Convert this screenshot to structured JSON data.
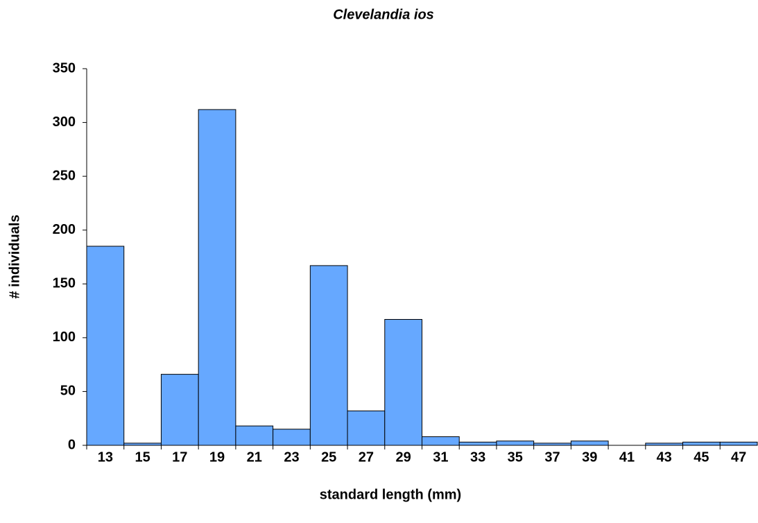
{
  "chart_data": {
    "type": "bar",
    "title": "Clevelandia ios",
    "x_label": "standard length (mm)",
    "y_label": "# individuals",
    "categories": [
      "13",
      "15",
      "17",
      "19",
      "21",
      "23",
      "25",
      "27",
      "29",
      "31",
      "33",
      "35",
      "37",
      "39",
      "41",
      "43",
      "45",
      "47"
    ],
    "values": [
      185,
      2,
      66,
      312,
      18,
      15,
      167,
      32,
      117,
      8,
      3,
      4,
      2,
      4,
      0,
      2,
      3,
      3
    ],
    "color": "#66a8ff",
    "ylim": [
      0,
      350
    ],
    "yticks": [
      0,
      50,
      100,
      150,
      200,
      250,
      300,
      350
    ],
    "grid": false
  }
}
